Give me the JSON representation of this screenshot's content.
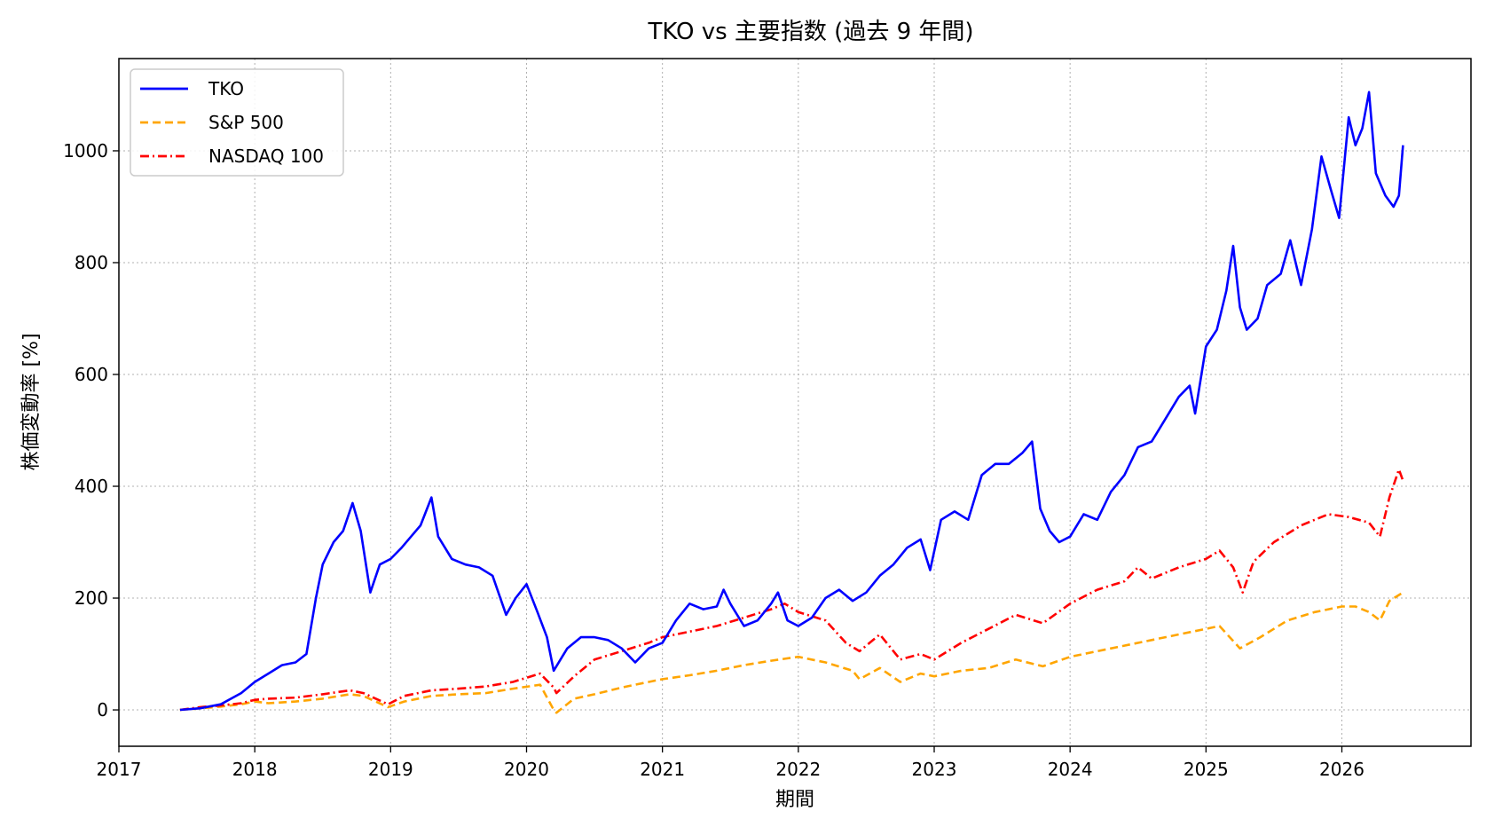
{
  "chart_data": {
    "type": "line",
    "title": "TKO vs 主要指数 (過去 9 年間)",
    "xlabel": "期間",
    "ylabel": "株価変動率 [%]",
    "xlim": [
      2017.0,
      2026.95
    ],
    "ylim": [
      -65,
      1165
    ],
    "x_ticks": [
      2017,
      2018,
      2019,
      2020,
      2021,
      2022,
      2023,
      2024,
      2025,
      2026
    ],
    "y_ticks": [
      0,
      200,
      400,
      600,
      800,
      1000
    ],
    "grid": true,
    "legend_position": "top-left",
    "series": [
      {
        "name": "TKO",
        "color": "#0000ff",
        "style": "solid",
        "points": [
          [
            2017.45,
            0
          ],
          [
            2017.6,
            3
          ],
          [
            2017.75,
            10
          ],
          [
            2017.9,
            30
          ],
          [
            2018.0,
            50
          ],
          [
            2018.1,
            65
          ],
          [
            2018.2,
            80
          ],
          [
            2018.3,
            85
          ],
          [
            2018.38,
            100
          ],
          [
            2018.45,
            200
          ],
          [
            2018.5,
            260
          ],
          [
            2018.58,
            300
          ],
          [
            2018.65,
            320
          ],
          [
            2018.72,
            370
          ],
          [
            2018.78,
            320
          ],
          [
            2018.85,
            210
          ],
          [
            2018.92,
            260
          ],
          [
            2019.0,
            270
          ],
          [
            2019.08,
            290
          ],
          [
            2019.15,
            310
          ],
          [
            2019.22,
            330
          ],
          [
            2019.3,
            380
          ],
          [
            2019.35,
            310
          ],
          [
            2019.45,
            270
          ],
          [
            2019.55,
            260
          ],
          [
            2019.65,
            255
          ],
          [
            2019.75,
            240
          ],
          [
            2019.85,
            170
          ],
          [
            2019.92,
            200
          ],
          [
            2020.0,
            225
          ],
          [
            2020.08,
            175
          ],
          [
            2020.15,
            130
          ],
          [
            2020.2,
            70
          ],
          [
            2020.3,
            110
          ],
          [
            2020.4,
            130
          ],
          [
            2020.5,
            130
          ],
          [
            2020.6,
            125
          ],
          [
            2020.7,
            110
          ],
          [
            2020.8,
            85
          ],
          [
            2020.9,
            110
          ],
          [
            2021.0,
            120
          ],
          [
            2021.1,
            160
          ],
          [
            2021.2,
            190
          ],
          [
            2021.3,
            180
          ],
          [
            2021.4,
            185
          ],
          [
            2021.45,
            215
          ],
          [
            2021.5,
            190
          ],
          [
            2021.6,
            150
          ],
          [
            2021.7,
            160
          ],
          [
            2021.8,
            190
          ],
          [
            2021.85,
            210
          ],
          [
            2021.92,
            160
          ],
          [
            2022.0,
            150
          ],
          [
            2022.1,
            165
          ],
          [
            2022.2,
            200
          ],
          [
            2022.3,
            215
          ],
          [
            2022.4,
            195
          ],
          [
            2022.5,
            210
          ],
          [
            2022.6,
            240
          ],
          [
            2022.7,
            260
          ],
          [
            2022.8,
            290
          ],
          [
            2022.9,
            305
          ],
          [
            2022.97,
            250
          ],
          [
            2023.05,
            340
          ],
          [
            2023.15,
            355
          ],
          [
            2023.25,
            340
          ],
          [
            2023.35,
            420
          ],
          [
            2023.45,
            440
          ],
          [
            2023.55,
            440
          ],
          [
            2023.65,
            460
          ],
          [
            2023.72,
            480
          ],
          [
            2023.78,
            360
          ],
          [
            2023.85,
            320
          ],
          [
            2023.92,
            300
          ],
          [
            2024.0,
            310
          ],
          [
            2024.1,
            350
          ],
          [
            2024.2,
            340
          ],
          [
            2024.3,
            390
          ],
          [
            2024.4,
            420
          ],
          [
            2024.5,
            470
          ],
          [
            2024.6,
            480
          ],
          [
            2024.7,
            520
          ],
          [
            2024.8,
            560
          ],
          [
            2024.88,
            580
          ],
          [
            2024.92,
            530
          ],
          [
            2025.0,
            650
          ],
          [
            2025.08,
            680
          ],
          [
            2025.15,
            750
          ],
          [
            2025.2,
            830
          ],
          [
            2025.25,
            720
          ],
          [
            2025.3,
            680
          ],
          [
            2025.38,
            700
          ],
          [
            2025.45,
            760
          ],
          [
            2025.55,
            780
          ],
          [
            2025.62,
            840
          ],
          [
            2025.7,
            760
          ],
          [
            2025.78,
            860
          ],
          [
            2025.85,
            990
          ],
          [
            2025.92,
            930
          ],
          [
            2025.98,
            880
          ],
          [
            2026.05,
            1060
          ],
          [
            2026.1,
            1010
          ],
          [
            2026.15,
            1040
          ],
          [
            2026.2,
            1105
          ],
          [
            2026.25,
            960
          ],
          [
            2026.32,
            920
          ],
          [
            2026.38,
            900
          ],
          [
            2026.42,
            920
          ],
          [
            2026.45,
            1010
          ]
        ]
      },
      {
        "name": "S&P 500",
        "color": "#ffa500",
        "style": "dashed",
        "points": [
          [
            2017.45,
            0
          ],
          [
            2017.6,
            3
          ],
          [
            2017.75,
            6
          ],
          [
            2017.9,
            10
          ],
          [
            2018.0,
            15
          ],
          [
            2018.1,
            12
          ],
          [
            2018.3,
            15
          ],
          [
            2018.5,
            20
          ],
          [
            2018.7,
            28
          ],
          [
            2018.8,
            25
          ],
          [
            2018.98,
            5
          ],
          [
            2019.1,
            15
          ],
          [
            2019.3,
            25
          ],
          [
            2019.5,
            28
          ],
          [
            2019.7,
            30
          ],
          [
            2019.9,
            38
          ],
          [
            2020.1,
            45
          ],
          [
            2020.2,
            0
          ],
          [
            2020.22,
            -5
          ],
          [
            2020.35,
            20
          ],
          [
            2020.5,
            28
          ],
          [
            2020.7,
            40
          ],
          [
            2020.9,
            50
          ],
          [
            2021.0,
            55
          ],
          [
            2021.2,
            62
          ],
          [
            2021.4,
            70
          ],
          [
            2021.6,
            80
          ],
          [
            2021.8,
            88
          ],
          [
            2022.0,
            95
          ],
          [
            2022.2,
            85
          ],
          [
            2022.4,
            70
          ],
          [
            2022.45,
            55
          ],
          [
            2022.6,
            75
          ],
          [
            2022.75,
            50
          ],
          [
            2022.9,
            65
          ],
          [
            2023.0,
            60
          ],
          [
            2023.2,
            70
          ],
          [
            2023.4,
            75
          ],
          [
            2023.6,
            90
          ],
          [
            2023.8,
            78
          ],
          [
            2024.0,
            95
          ],
          [
            2024.2,
            105
          ],
          [
            2024.4,
            115
          ],
          [
            2024.6,
            125
          ],
          [
            2024.8,
            135
          ],
          [
            2025.0,
            145
          ],
          [
            2025.1,
            150
          ],
          [
            2025.25,
            110
          ],
          [
            2025.4,
            130
          ],
          [
            2025.6,
            160
          ],
          [
            2025.8,
            175
          ],
          [
            2026.0,
            185
          ],
          [
            2026.1,
            185
          ],
          [
            2026.2,
            175
          ],
          [
            2026.28,
            160
          ],
          [
            2026.35,
            195
          ],
          [
            2026.45,
            210
          ]
        ]
      },
      {
        "name": "NASDAQ 100",
        "color": "#ff0000",
        "style": "dashdot",
        "points": [
          [
            2017.45,
            0
          ],
          [
            2017.6,
            5
          ],
          [
            2017.75,
            8
          ],
          [
            2017.9,
            12
          ],
          [
            2018.0,
            18
          ],
          [
            2018.1,
            20
          ],
          [
            2018.3,
            22
          ],
          [
            2018.5,
            28
          ],
          [
            2018.7,
            35
          ],
          [
            2018.8,
            30
          ],
          [
            2018.98,
            10
          ],
          [
            2019.1,
            25
          ],
          [
            2019.3,
            35
          ],
          [
            2019.5,
            38
          ],
          [
            2019.7,
            42
          ],
          [
            2019.9,
            50
          ],
          [
            2020.1,
            65
          ],
          [
            2020.2,
            40
          ],
          [
            2020.22,
            30
          ],
          [
            2020.35,
            60
          ],
          [
            2020.5,
            90
          ],
          [
            2020.7,
            105
          ],
          [
            2020.9,
            120
          ],
          [
            2021.0,
            130
          ],
          [
            2021.2,
            140
          ],
          [
            2021.4,
            150
          ],
          [
            2021.6,
            165
          ],
          [
            2021.8,
            180
          ],
          [
            2021.9,
            190
          ],
          [
            2022.0,
            175
          ],
          [
            2022.2,
            160
          ],
          [
            2022.35,
            120
          ],
          [
            2022.45,
            105
          ],
          [
            2022.6,
            135
          ],
          [
            2022.75,
            90
          ],
          [
            2022.9,
            100
          ],
          [
            2023.0,
            90
          ],
          [
            2023.2,
            120
          ],
          [
            2023.4,
            145
          ],
          [
            2023.6,
            170
          ],
          [
            2023.8,
            155
          ],
          [
            2024.0,
            190
          ],
          [
            2024.2,
            215
          ],
          [
            2024.4,
            230
          ],
          [
            2024.5,
            255
          ],
          [
            2024.6,
            235
          ],
          [
            2024.8,
            255
          ],
          [
            2025.0,
            270
          ],
          [
            2025.1,
            285
          ],
          [
            2025.2,
            255
          ],
          [
            2025.27,
            210
          ],
          [
            2025.35,
            265
          ],
          [
            2025.5,
            300
          ],
          [
            2025.7,
            330
          ],
          [
            2025.9,
            350
          ],
          [
            2026.05,
            345
          ],
          [
            2026.2,
            335
          ],
          [
            2026.28,
            310
          ],
          [
            2026.35,
            380
          ],
          [
            2026.42,
            430
          ],
          [
            2026.45,
            410
          ]
        ]
      }
    ]
  }
}
